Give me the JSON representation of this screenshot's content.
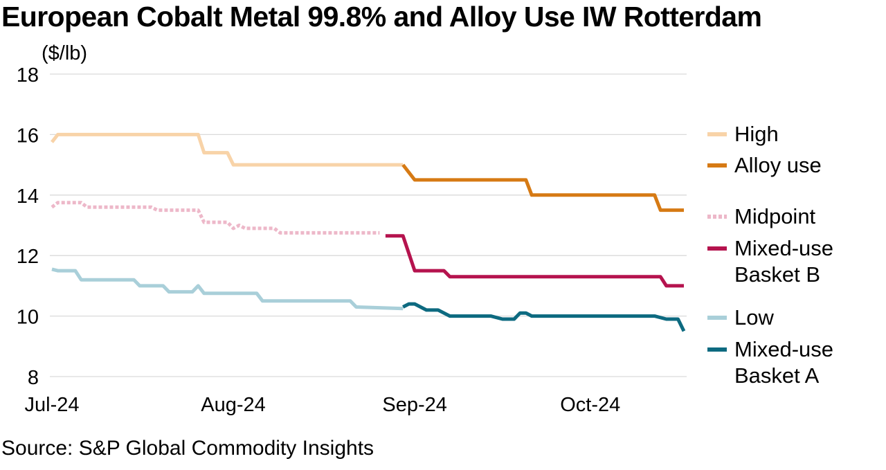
{
  "header": {
    "title": "European Cobalt Metal 99.8% and Alloy Use IW Rotterdam"
  },
  "footer": {
    "source": "Source:  S&P Global Commodity Insights"
  },
  "chart_data": {
    "type": "line",
    "title": "European Cobalt Metal 99.8% and Alloy Use IW Rotterdam",
    "ylabel": "($/lb)",
    "xlabel": "",
    "ylim": [
      8,
      18
    ],
    "yticks": [
      "8",
      "10",
      "12",
      "14",
      "16",
      "18"
    ],
    "xticks": [
      {
        "label": "Jul-24",
        "date": "2024-07-01"
      },
      {
        "label": "Aug-24",
        "date": "2024-08-01"
      },
      {
        "label": "Sep-24",
        "date": "2024-09-01"
      },
      {
        "label": "Oct-24",
        "date": "2024-10-01"
      }
    ],
    "grid": true,
    "legend_position": "right",
    "series": [
      {
        "name": "High",
        "color": "#F8D3A8",
        "style": "solid",
        "points": [
          [
            "2024-07-01",
            15.75
          ],
          [
            "2024-07-02",
            16.0
          ],
          [
            "2024-07-26",
            16.0
          ],
          [
            "2024-07-27",
            15.4
          ],
          [
            "2024-07-31",
            15.4
          ],
          [
            "2024-08-01",
            15.0
          ],
          [
            "2024-08-30",
            15.0
          ]
        ]
      },
      {
        "name": "Alloy use",
        "color": "#D67A14",
        "style": "solid",
        "points": [
          [
            "2024-08-30",
            15.0
          ],
          [
            "2024-09-01",
            14.5
          ],
          [
            "2024-09-20",
            14.5
          ],
          [
            "2024-09-21",
            14.0
          ],
          [
            "2024-10-12",
            14.0
          ],
          [
            "2024-10-13",
            13.5
          ],
          [
            "2024-10-17",
            13.5
          ]
        ]
      },
      {
        "name": "Midpoint",
        "color": "#EDB8C9",
        "style": "dotted",
        "points": [
          [
            "2024-07-01",
            13.6
          ],
          [
            "2024-07-02",
            13.75
          ],
          [
            "2024-07-06",
            13.75
          ],
          [
            "2024-07-07",
            13.6
          ],
          [
            "2024-07-18",
            13.6
          ],
          [
            "2024-07-19",
            13.5
          ],
          [
            "2024-07-26",
            13.5
          ],
          [
            "2024-07-27",
            13.1
          ],
          [
            "2024-07-31",
            13.1
          ],
          [
            "2024-08-01",
            12.9
          ],
          [
            "2024-08-02",
            13.0
          ],
          [
            "2024-08-03",
            12.9
          ],
          [
            "2024-08-08",
            12.9
          ],
          [
            "2024-08-09",
            12.75
          ],
          [
            "2024-08-26",
            12.75
          ]
        ]
      },
      {
        "name": "Mixed-use Basket B",
        "color": "#B5134E",
        "style": "solid",
        "points": [
          [
            "2024-08-27",
            12.65
          ],
          [
            "2024-08-30",
            12.65
          ],
          [
            "2024-09-01",
            11.5
          ],
          [
            "2024-09-06",
            11.5
          ],
          [
            "2024-09-07",
            11.3
          ],
          [
            "2024-10-13",
            11.3
          ],
          [
            "2024-10-14",
            11.0
          ],
          [
            "2024-10-17",
            11.0
          ]
        ]
      },
      {
        "name": "Low",
        "color": "#A9CFD9",
        "style": "solid",
        "points": [
          [
            "2024-07-01",
            11.55
          ],
          [
            "2024-07-02",
            11.5
          ],
          [
            "2024-07-05",
            11.5
          ],
          [
            "2024-07-06",
            11.2
          ],
          [
            "2024-07-15",
            11.2
          ],
          [
            "2024-07-16",
            11.0
          ],
          [
            "2024-07-20",
            11.0
          ],
          [
            "2024-07-21",
            10.8
          ],
          [
            "2024-07-25",
            10.8
          ],
          [
            "2024-07-26",
            11.0
          ],
          [
            "2024-07-27",
            10.75
          ],
          [
            "2024-08-05",
            10.75
          ],
          [
            "2024-08-06",
            10.5
          ],
          [
            "2024-08-21",
            10.5
          ],
          [
            "2024-08-22",
            10.3
          ],
          [
            "2024-08-30",
            10.25
          ]
        ]
      },
      {
        "name": "Mixed-use Basket A",
        "color": "#0D6A80",
        "style": "solid",
        "points": [
          [
            "2024-08-30",
            10.3
          ],
          [
            "2024-08-31",
            10.4
          ],
          [
            "2024-09-01",
            10.4
          ],
          [
            "2024-09-03",
            10.2
          ],
          [
            "2024-09-05",
            10.2
          ],
          [
            "2024-09-07",
            10.0
          ],
          [
            "2024-09-14",
            10.0
          ],
          [
            "2024-09-16",
            9.9
          ],
          [
            "2024-09-18",
            9.9
          ],
          [
            "2024-09-19",
            10.1
          ],
          [
            "2024-09-20",
            10.1
          ],
          [
            "2024-09-21",
            10.0
          ],
          [
            "2024-10-12",
            10.0
          ],
          [
            "2024-10-14",
            9.9
          ],
          [
            "2024-10-16",
            9.9
          ],
          [
            "2024-10-17",
            9.5
          ]
        ]
      }
    ],
    "legend": [
      {
        "series": "High",
        "lines": [
          "High"
        ]
      },
      {
        "series": "Alloy use",
        "lines": [
          "Alloy use"
        ]
      },
      {
        "series": "Midpoint",
        "lines": [
          "Midpoint"
        ]
      },
      {
        "series": "Mixed-use Basket B",
        "lines": [
          "Mixed-use",
          "Basket B"
        ]
      },
      {
        "series": "Low",
        "lines": [
          "Low"
        ]
      },
      {
        "series": "Mixed-use Basket A",
        "lines": [
          "Mixed-use",
          "Basket A"
        ]
      }
    ]
  }
}
